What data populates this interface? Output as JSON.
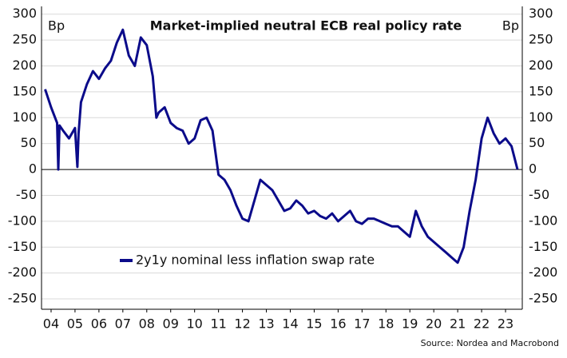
{
  "chart_data": {
    "type": "line",
    "title": "Market-implied neutral ECB real policy rate",
    "y_unit_left": "Bp",
    "y_unit_right": "Bp",
    "source": "Source: Nordea and Macrobond",
    "x": [
      2004.25,
      2004.5,
      2004.75,
      2004.8,
      2004.85,
      2005.0,
      2005.25,
      2005.5,
      2005.6,
      2005.65,
      2005.75,
      2006.0,
      2006.25,
      2006.5,
      2006.75,
      2007.0,
      2007.25,
      2007.5,
      2007.75,
      2008.0,
      2008.25,
      2008.5,
      2008.75,
      2008.9,
      2009.0,
      2009.25,
      2009.5,
      2009.75,
      2010.0,
      2010.25,
      2010.5,
      2010.75,
      2011.0,
      2011.25,
      2011.5,
      2011.75,
      2012.0,
      2012.25,
      2012.5,
      2012.75,
      2013.0,
      2013.25,
      2013.5,
      2013.75,
      2014.0,
      2014.25,
      2014.5,
      2014.75,
      2015.0,
      2015.25,
      2015.5,
      2015.75,
      2016.0,
      2016.25,
      2016.5,
      2016.75,
      2017.0,
      2017.25,
      2017.5,
      2017.75,
      2018.0,
      2018.25,
      2018.5,
      2018.75,
      2019.0,
      2019.25,
      2019.5,
      2019.75,
      2020.0,
      2020.25,
      2020.5,
      2020.75,
      2021.0,
      2021.25,
      2021.5,
      2021.75,
      2022.0,
      2022.25,
      2022.5,
      2022.75,
      2023.0,
      2023.25,
      2023.5,
      2023.75,
      2024.0
    ],
    "series": [
      {
        "name": "2y1y nominal less inflation swap rate",
        "color": "#0b0b8a",
        "values": [
          155,
          120,
          90,
          0,
          85,
          75,
          60,
          80,
          5,
          70,
          130,
          165,
          190,
          175,
          195,
          210,
          245,
          270,
          220,
          200,
          255,
          240,
          180,
          100,
          110,
          120,
          90,
          80,
          75,
          50,
          60,
          95,
          100,
          75,
          -10,
          -20,
          -40,
          -70,
          -95,
          -100,
          -60,
          -20,
          -30,
          -40,
          -60,
          -80,
          -75,
          -60,
          -70,
          -85,
          -80,
          -90,
          -95,
          -85,
          -100,
          -90,
          -80,
          -100,
          -105,
          -95,
          -95,
          -100,
          -105,
          -110,
          -110,
          -120,
          -130,
          -80,
          -110,
          -130,
          -140,
          -150,
          -160,
          -170,
          -180,
          -150,
          -80,
          -20,
          60,
          100,
          70,
          50,
          60,
          45,
          0
        ]
      }
    ],
    "xlim": [
      2004.1,
      2024.2
    ],
    "xticks": [
      {
        "value": 2004.5,
        "label": "04"
      },
      {
        "value": 2005.5,
        "label": "05"
      },
      {
        "value": 2006.5,
        "label": "06"
      },
      {
        "value": 2007.5,
        "label": "07"
      },
      {
        "value": 2008.5,
        "label": "08"
      },
      {
        "value": 2009.5,
        "label": "09"
      },
      {
        "value": 2010.5,
        "label": "10"
      },
      {
        "value": 2011.5,
        "label": "11"
      },
      {
        "value": 2012.5,
        "label": "12"
      },
      {
        "value": 2013.5,
        "label": "13"
      },
      {
        "value": 2014.5,
        "label": "14"
      },
      {
        "value": 2015.5,
        "label": "15"
      },
      {
        "value": 2016.5,
        "label": "16"
      },
      {
        "value": 2017.5,
        "label": "17"
      },
      {
        "value": 2018.5,
        "label": "18"
      },
      {
        "value": 2019.5,
        "label": "19"
      },
      {
        "value": 2020.5,
        "label": "20"
      },
      {
        "value": 2021.5,
        "label": "21"
      },
      {
        "value": 2022.5,
        "label": "22"
      },
      {
        "value": 2023.5,
        "label": "23"
      }
    ],
    "ylim": [
      -270,
      315
    ],
    "yticks": [
      -250,
      -200,
      -150,
      -100,
      -50,
      0,
      50,
      100,
      150,
      200,
      250,
      300
    ],
    "grid": true
  }
}
